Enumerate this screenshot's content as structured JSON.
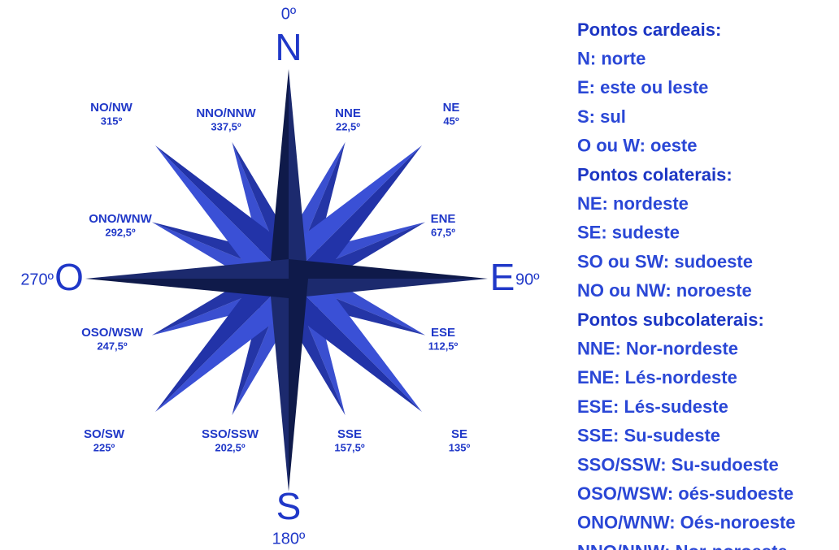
{
  "compass": {
    "north": {
      "letter": "N",
      "degree": "0º"
    },
    "south": {
      "letter": "S",
      "degree": "180º"
    },
    "west": {
      "letter": "O",
      "degree": "270º"
    },
    "east": {
      "letter": "E",
      "degree": "90º"
    },
    "points": [
      {
        "label": "NO/NW",
        "degree": "315º"
      },
      {
        "label": "NNO/NNW",
        "degree": "337,5º"
      },
      {
        "label": "NNE",
        "degree": "22,5º"
      },
      {
        "label": "NE",
        "degree": "45º"
      },
      {
        "label": "ONO/WNW",
        "degree": "292,5º"
      },
      {
        "label": "ENE",
        "degree": "67,5º"
      },
      {
        "label": "OSO/WSW",
        "degree": "247,5º"
      },
      {
        "label": "ESE",
        "degree": "112,5º"
      },
      {
        "label": "SO/SW",
        "degree": "225º"
      },
      {
        "label": "SSO/SSW",
        "degree": "202,5º"
      },
      {
        "label": "SSE",
        "degree": "157,5º"
      },
      {
        "label": "SE",
        "degree": "135º"
      }
    ]
  },
  "legend": {
    "sections": [
      {
        "heading": "Pontos cardeais:",
        "items": [
          "N: norte",
          "E: este ou leste",
          "S: sul",
          "O ou W: oeste"
        ]
      },
      {
        "heading": "Pontos colaterais:",
        "items": [
          "NE: nordeste",
          "SE: sudeste",
          "SO ou SW: sudoeste",
          "NO ou NW: noroeste"
        ]
      },
      {
        "heading": "Pontos subcolaterais:",
        "items": [
          "NNE: Nor-nordeste",
          "ENE: Lés-nordeste",
          "ESE: Lés-sudeste",
          "SSE: Su-sudeste",
          "SSO/SSW: Su-sudoeste",
          "OSO/WSW: oés-sudoeste",
          "ONO/WNW: Oés-noroeste",
          "NNO/NNW: Nor-noroeste"
        ]
      }
    ]
  }
}
